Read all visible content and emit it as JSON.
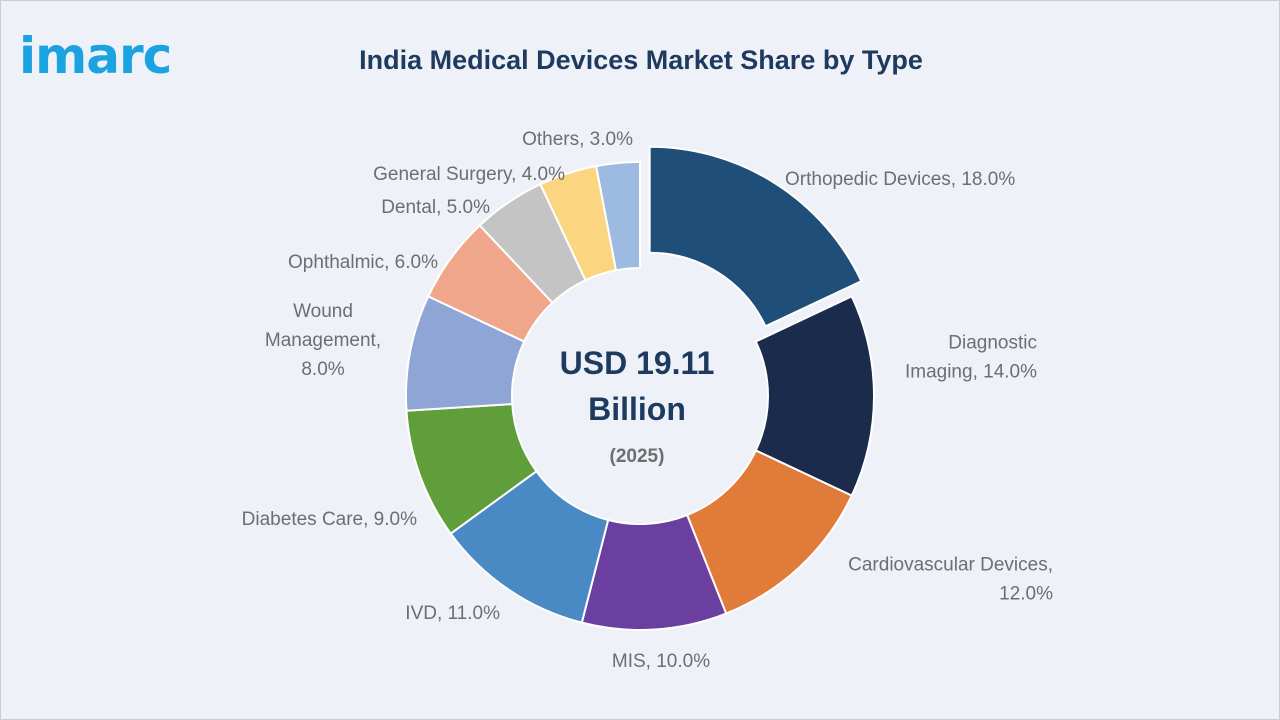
{
  "logo": {
    "text": "imarc",
    "color": "#1aa3e0"
  },
  "chart_data": {
    "type": "pie",
    "subtype": "donut",
    "title": "India Medical Devices Market Share by Type",
    "center_text": [
      "USD 19.11",
      "Billion"
    ],
    "center_subtext": "(2025)",
    "unit": "%",
    "slices": [
      {
        "name": "Orthopedic Devices",
        "value": 18.0,
        "color": "#1f4e79",
        "label": [
          "Orthopedic Devices, 18.0%"
        ],
        "exploded": true
      },
      {
        "name": "Diagnostic Imaging",
        "value": 14.0,
        "color": "#1a2b4c",
        "label": [
          "Diagnostic",
          "Imaging, 14.0%"
        ]
      },
      {
        "name": "Cardiovascular Devices",
        "value": 12.0,
        "color": "#e07b39",
        "label": [
          "Cardiovascular Devices,",
          "12.0%"
        ]
      },
      {
        "name": "MIS",
        "value": 10.0,
        "color": "#6b3fa0",
        "label": [
          "MIS, 10.0%"
        ]
      },
      {
        "name": "IVD",
        "value": 11.0,
        "color": "#4a8ac4",
        "label": [
          "IVD, 11.0%"
        ]
      },
      {
        "name": "Diabetes Care",
        "value": 9.0,
        "color": "#5f9e3a",
        "label": [
          "Diabetes Care, 9.0%"
        ]
      },
      {
        "name": "Wound Management",
        "value": 8.0,
        "color": "#8ea5d6",
        "label": [
          "Wound",
          "Management,",
          "8.0%"
        ]
      },
      {
        "name": "Ophthalmic",
        "value": 6.0,
        "color": "#f0a68a",
        "label": [
          "Ophthalmic, 6.0%"
        ]
      },
      {
        "name": "Dental",
        "value": 5.0,
        "color": "#c4c4c4",
        "label": [
          "Dental, 5.0%"
        ]
      },
      {
        "name": "General Surgery",
        "value": 4.0,
        "color": "#fcd581",
        "label": [
          "General Surgery, 4.0%"
        ]
      },
      {
        "name": "Others",
        "value": 3.0,
        "color": "#9dbbe0",
        "label": [
          "Others, 3.0%"
        ]
      }
    ]
  }
}
